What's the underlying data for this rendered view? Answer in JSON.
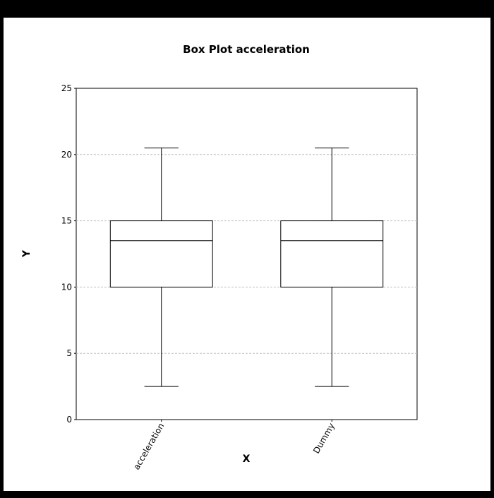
{
  "chart_data": {
    "type": "box",
    "title": "Box Plot acceleration",
    "xlabel": "X",
    "ylabel": "Y",
    "ylim": [
      0,
      25
    ],
    "yticks": [
      0,
      5,
      10,
      15,
      20,
      25
    ],
    "grid": true,
    "categories": [
      "acceleration",
      "Dummy"
    ],
    "boxes": [
      {
        "category": "acceleration",
        "min": 2.5,
        "q1": 10,
        "median": 13.5,
        "q3": 15,
        "max": 20.5
      },
      {
        "category": "Dummy",
        "min": 2.5,
        "q1": 10,
        "median": 13.5,
        "q3": 15,
        "max": 20.5
      }
    ],
    "colors": {
      "background": "#ffffff",
      "frame": "#000000",
      "grid": "#c0c0c0",
      "box_fill": "#ffffff",
      "box_stroke": "#000000"
    }
  }
}
